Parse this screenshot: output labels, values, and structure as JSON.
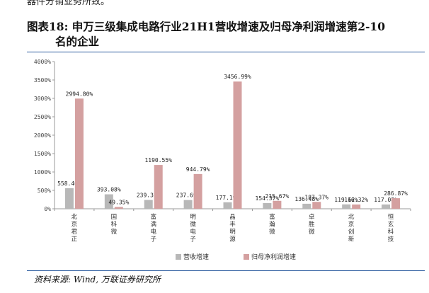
{
  "page": {
    "top_snippet": "器件分销业务所致。",
    "title_line1": "图表18:  申万三级集成电路行业21H1营收增速及归母净利润增速第2-10",
    "title_line2": "名的企业",
    "source": "资料来源: Wind, 万联证券研究所"
  },
  "colors": {
    "series1": "#b8b8b8",
    "series2": "#d4a0a0",
    "rule": "#2a5a9e"
  },
  "chart_data": {
    "type": "bar",
    "categories": [
      "北京君正",
      "国科微",
      "富满电子",
      "明微电子",
      "晶丰明源",
      "富瀚微",
      "卓胜微",
      "北京创新",
      "恒玄科技"
    ],
    "series": [
      {
        "name": "营收增速",
        "values": [
          558.46,
          393.08,
          239.31,
          237.69,
          177.19,
          154.37,
          136.48,
          119.62,
          117.08
        ],
        "labels": [
          "558.46%",
          "393.08%",
          "239.31%",
          "237.69%",
          "177.19%",
          "154.37%",
          "136.48%",
          "119.62%",
          "117.08%"
        ]
      },
      {
        "name": "归母净利润增速",
        "values": [
          2994.8,
          49.35,
          1190.55,
          944.79,
          3456.99,
          215.67,
          187.37,
          116.32,
          286.87
        ],
        "labels": [
          "2994.80%",
          "49.35%",
          "1190.55%",
          "944.79%",
          "3456.99%",
          "215.67%",
          "187.37%",
          "116.32%",
          "286.87%"
        ]
      }
    ],
    "ylim": [
      0,
      4000
    ],
    "yticks": [
      "0%",
      "500%",
      "1000%",
      "1500%",
      "2000%",
      "2500%",
      "3000%",
      "3500%",
      "4000%"
    ],
    "ytick_values": [
      0,
      500,
      1000,
      1500,
      2000,
      2500,
      3000,
      3500,
      4000
    ],
    "legend_position": "bottom-center",
    "grid": false
  }
}
